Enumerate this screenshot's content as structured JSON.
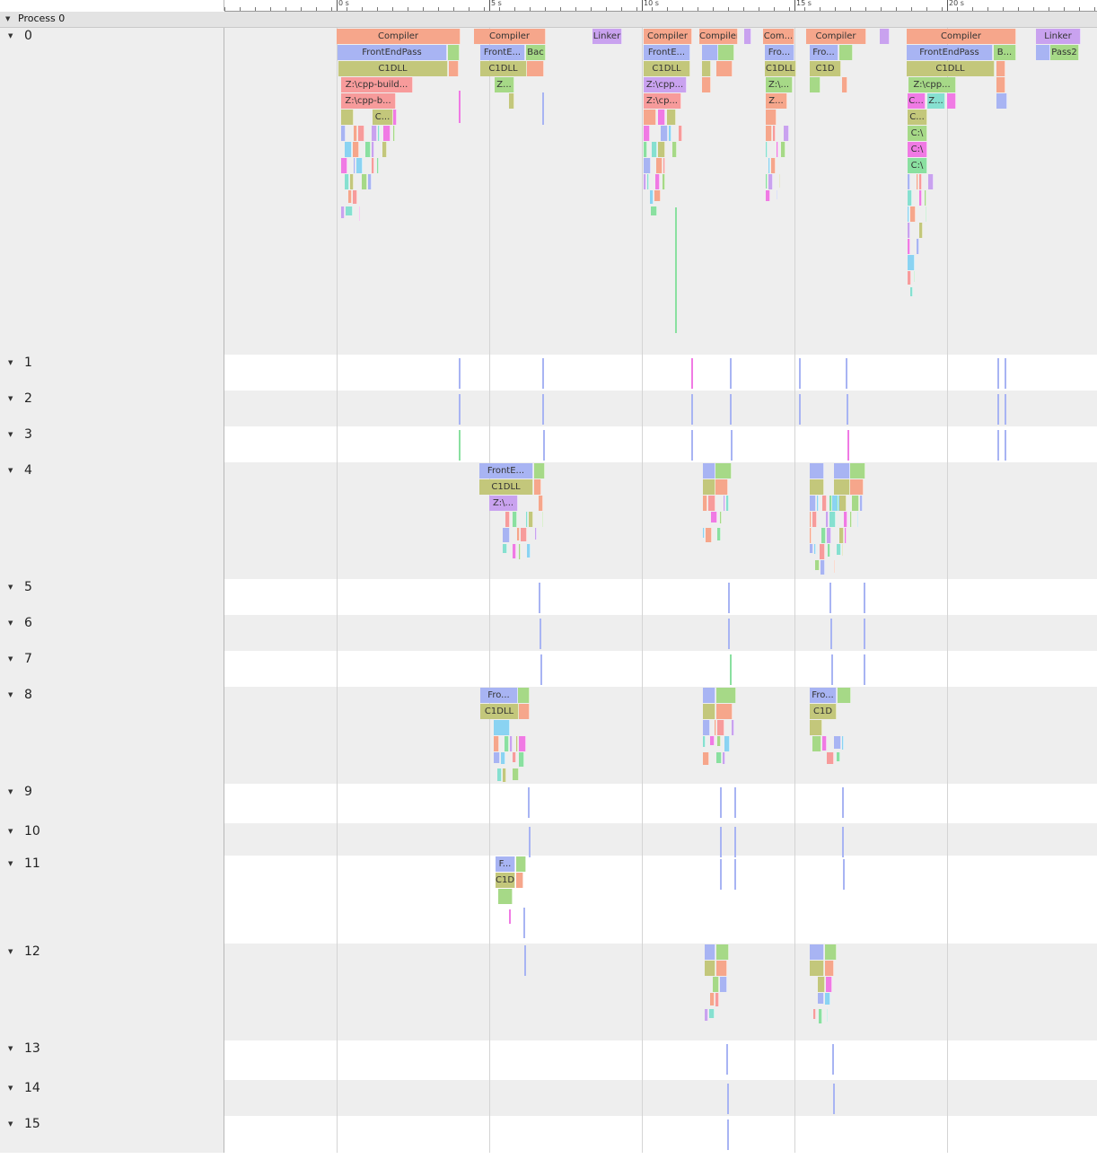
{
  "process": {
    "label": "Process 0"
  },
  "ruler_labels": [
    "0 s",
    "5 s",
    "10 s",
    "15 s",
    "20 s"
  ],
  "colors": {
    "compiler": "#f6a68b",
    "frontend": "#a8b4f3",
    "c1dll": "#c3c77b",
    "path": "#f79b9b",
    "linker": "#c9a2ef",
    "backend": "#a6d987",
    "pink": "#f07ae4",
    "cyan": "#8ad3f2",
    "green": "#8ae0a0",
    "teal": "#86e0d0",
    "row_alt": "#eeeeee",
    "row_plain": "#ffffff"
  },
  "threads": [
    {
      "label": "0",
      "events": [
        {
          "name": "Compiler"
        },
        {
          "name": "FrontEndPass"
        },
        {
          "name": "C1DLL"
        },
        {
          "name": "Z:\\cpp-build..."
        },
        {
          "name": "Z:\\cpp-b..."
        },
        {
          "name": "C..."
        },
        {
          "name": "Compiler"
        },
        {
          "name": "FrontE..."
        },
        {
          "name": "Bac"
        },
        {
          "name": "C1DLL"
        },
        {
          "name": "Z..."
        },
        {
          "name": "Linker"
        },
        {
          "name": "Compiler"
        },
        {
          "name": "FrontE..."
        },
        {
          "name": "C1DLL"
        },
        {
          "name": "Z:\\cpp..."
        },
        {
          "name": "Z:\\cp..."
        },
        {
          "name": "Compiler"
        },
        {
          "name": "Com..."
        },
        {
          "name": "Fro..."
        },
        {
          "name": "C1DLL"
        },
        {
          "name": "Z:\\..."
        },
        {
          "name": "Z..."
        },
        {
          "name": "Compiler"
        },
        {
          "name": "Fro..."
        },
        {
          "name": "C1D"
        },
        {
          "name": "Compiler"
        },
        {
          "name": "FrontEndPass"
        },
        {
          "name": "B..."
        },
        {
          "name": "C1DLL"
        },
        {
          "name": "Z:\\cpp..."
        },
        {
          "name": "C..."
        },
        {
          "name": "Z..."
        },
        {
          "name": "C..."
        },
        {
          "name": "C:\\"
        },
        {
          "name": "C:\\"
        },
        {
          "name": "C:\\"
        },
        {
          "name": "Linker"
        },
        {
          "name": "Pass2"
        }
      ]
    },
    {
      "label": "1",
      "events": []
    },
    {
      "label": "2",
      "events": []
    },
    {
      "label": "3",
      "events": []
    },
    {
      "label": "4",
      "events": [
        {
          "name": "FrontE..."
        },
        {
          "name": "C1DLL"
        },
        {
          "name": "Z:\\..."
        }
      ]
    },
    {
      "label": "5",
      "events": []
    },
    {
      "label": "6",
      "events": []
    },
    {
      "label": "7",
      "events": []
    },
    {
      "label": "8",
      "events": [
        {
          "name": "Fro..."
        },
        {
          "name": "C1DLL"
        },
        {
          "name": "Fro..."
        },
        {
          "name": "C1D"
        }
      ]
    },
    {
      "label": "9",
      "events": []
    },
    {
      "label": "10",
      "events": []
    },
    {
      "label": "11",
      "events": [
        {
          "name": "F..."
        },
        {
          "name": "C1D"
        }
      ]
    },
    {
      "label": "12",
      "events": []
    },
    {
      "label": "13",
      "events": []
    },
    {
      "label": "14",
      "events": []
    },
    {
      "label": "15",
      "events": []
    }
  ]
}
